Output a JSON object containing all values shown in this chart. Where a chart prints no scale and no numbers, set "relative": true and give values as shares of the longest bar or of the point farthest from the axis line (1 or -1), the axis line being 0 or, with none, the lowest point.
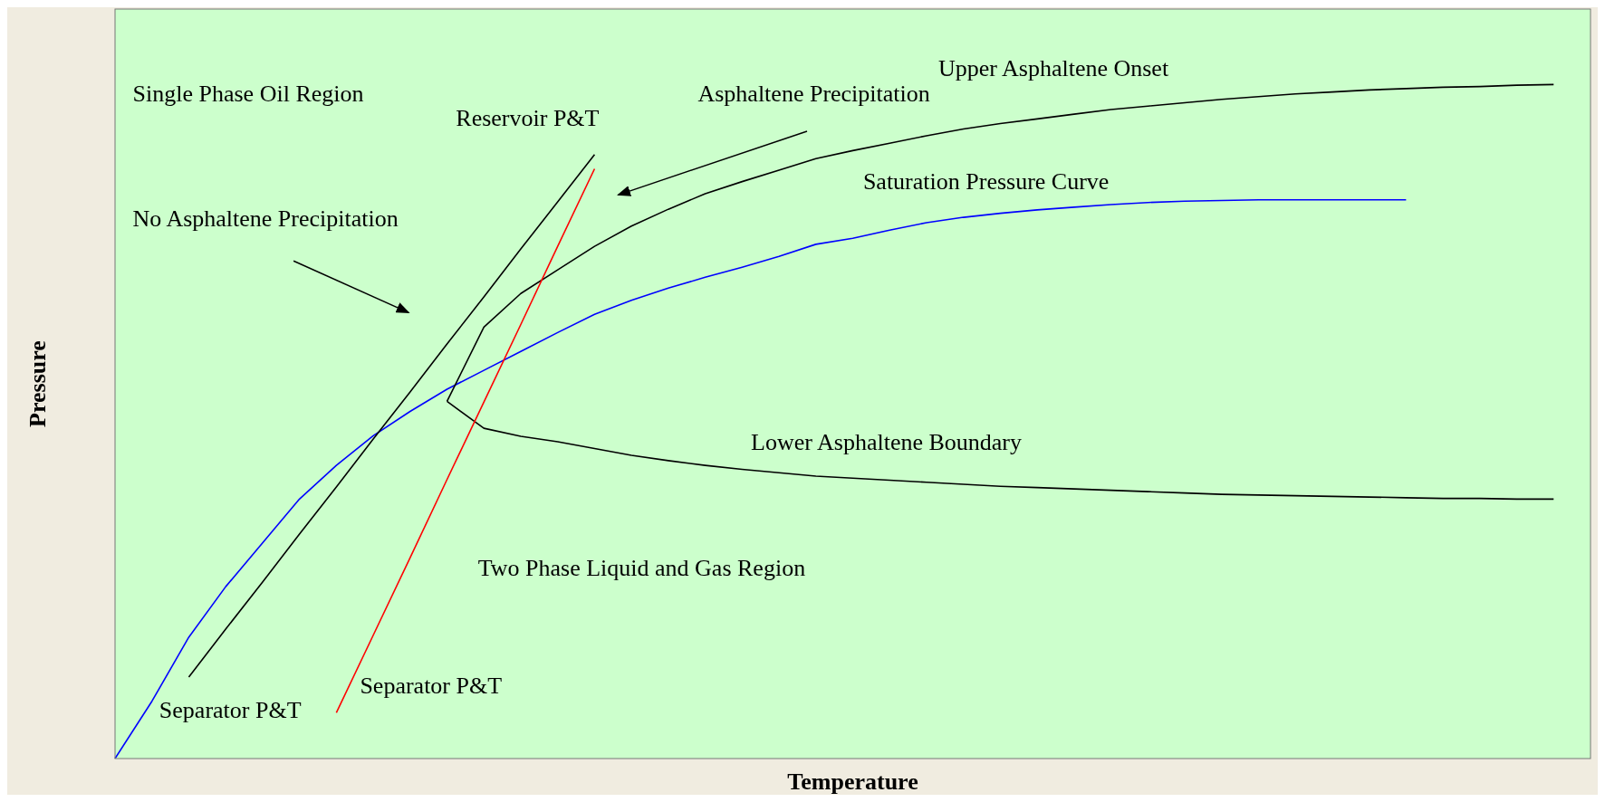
{
  "chart_data": {
    "type": "line",
    "relative": true,
    "xlabel": "Temperature",
    "ylabel": "Pressure",
    "legend": false,
    "grid": false,
    "marker": "none",
    "line_style": "solid",
    "annotations": [
      "Single Phase Oil Region",
      "Reservoir P&T",
      "Asphaltene Precipitation",
      "No Asphaltene Precipitation",
      "Two Phase Liquid and Gas Region",
      "Separator P&T",
      "Separator P&T"
    ],
    "categories": [
      null,
      null,
      null,
      null,
      null,
      null,
      null,
      null,
      null,
      null,
      null,
      null,
      null,
      null,
      null,
      null,
      null,
      null,
      null,
      null,
      null,
      null,
      null,
      null,
      null,
      null,
      null,
      null,
      null,
      null,
      null,
      null,
      null,
      null,
      null,
      null,
      null,
      null,
      null,
      null,
      null
    ],
    "series": [
      {
        "name": "Saturation Pressure Curve",
        "color": "#0000ff",
        "values": [
          0,
          0.085,
          0.18,
          0.255,
          0.32,
          0.385,
          0.435,
          0.479,
          0.515,
          0.548,
          0.576,
          0.604,
          0.632,
          0.659,
          0.68,
          0.698,
          0.714,
          0.729,
          0.745,
          0.763,
          0.772,
          0.784,
          0.795,
          0.803,
          0.809,
          0.814,
          0.818,
          0.822,
          0.825,
          0.827,
          0.828,
          0.829,
          0.829,
          0.829,
          0.829,
          0.829,
          null,
          null,
          null,
          null,
          null
        ]
      },
      {
        "name": "Upper Asphaltene Onset",
        "color": "#000000",
        "values": [
          null,
          null,
          null,
          null,
          null,
          null,
          null,
          null,
          null,
          0.53,
          0.64,
          0.69,
          0.725,
          0.76,
          0.79,
          0.815,
          0.838,
          0.856,
          0.873,
          0.89,
          0.902,
          0.913,
          0.924,
          0.934,
          0.942,
          0.949,
          0.956,
          0.963,
          0.968,
          0.973,
          0.978,
          0.982,
          0.986,
          0.989,
          0.992,
          0.994,
          0.996,
          0.997,
          0.999,
          1,
          null
        ]
      },
      {
        "name": "Lower Asphaltene Boundary",
        "color": "#000000",
        "values": [
          null,
          null,
          null,
          null,
          null,
          null,
          null,
          null,
          null,
          0.53,
          0.49,
          0.478,
          0.47,
          0.46,
          0.45,
          0.442,
          0.435,
          0.429,
          0.424,
          0.419,
          0.416,
          0.413,
          0.41,
          0.407,
          0.404,
          0.402,
          0.4,
          0.398,
          0.396,
          0.394,
          0.392,
          0.391,
          0.39,
          0.389,
          0.388,
          0.387,
          0.386,
          0.386,
          0.385,
          0.385,
          null
        ]
      },
      {
        "color": "#000000",
        "values": [
          null,
          null,
          0.121,
          0.192,
          0.262,
          0.333,
          0.403,
          0.474,
          0.544,
          0.615,
          0.685,
          0.756,
          0.826,
          0.896,
          null,
          null,
          null,
          null,
          null,
          null,
          null,
          null,
          null,
          null,
          null,
          null,
          null,
          null,
          null,
          null,
          null,
          null,
          null,
          null,
          null,
          null,
          null,
          null,
          null,
          null,
          null
        ]
      },
      {
        "color": "#ff0000",
        "values": [
          null,
          null,
          null,
          null,
          null,
          null,
          0.068,
          0.183,
          0.298,
          0.414,
          0.529,
          0.644,
          0.76,
          0.875,
          null,
          null,
          null,
          null,
          null,
          null,
          null,
          null,
          null,
          null,
          null,
          null,
          null,
          null,
          null,
          null,
          null,
          null,
          null,
          null,
          null,
          null,
          null,
          null,
          null,
          null,
          null
        ]
      }
    ]
  }
}
